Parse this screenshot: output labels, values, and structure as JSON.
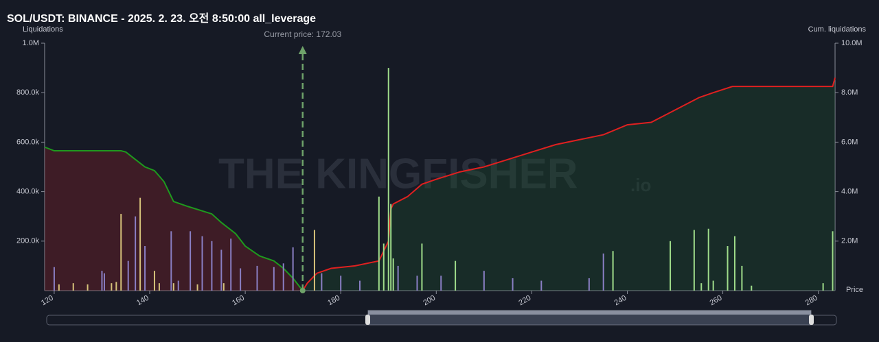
{
  "chart_data": {
    "type": "bar",
    "title": "SOL/USDT: BINANCE - 2025. 2. 23. 오전 8:50:00 all_leverage",
    "y_label": "Liquidations",
    "y2_label": "Cum. liquidations",
    "x_label": "Price",
    "current_price": 172.03,
    "current_price_label": "Current price: 172.03",
    "watermark": "THE KINGFISHER",
    "watermark_suffix": ".io",
    "xlim": [
      118,
      283.5
    ],
    "xticks": [
      120,
      140,
      160,
      180,
      200,
      220,
      240,
      260,
      280
    ],
    "ylim": [
      0,
      1000000
    ],
    "yticks": [
      {
        "value": 200000,
        "label": "200.0k"
      },
      {
        "value": 400000,
        "label": "400.0k"
      },
      {
        "value": 600000,
        "label": "600.0k"
      },
      {
        "value": 800000,
        "label": "800.0k"
      },
      {
        "value": 1000000,
        "label": "1.0M"
      }
    ],
    "y2lim": [
      0,
      10000000
    ],
    "y2ticks": [
      {
        "value": 2000000,
        "label": "2.0M"
      },
      {
        "value": 4000000,
        "label": "4.0M"
      },
      {
        "value": 6000000,
        "label": "6.0M"
      },
      {
        "value": 8000000,
        "label": "8.0M"
      },
      {
        "value": 10000000,
        "label": "10.0M"
      }
    ],
    "series": [
      {
        "type": "bar",
        "color": "#8a7fc4",
        "x": [
          120,
          130,
          130.5,
          135.5,
          137,
          139,
          144.5,
          146,
          148.5,
          151,
          153,
          155,
          157,
          159,
          162.5,
          166,
          168,
          170,
          176,
          180,
          184,
          192,
          196,
          201,
          210,
          216,
          222,
          232,
          235
        ],
        "values": [
          95000,
          80000,
          70000,
          120000,
          300000,
          180000,
          240000,
          40000,
          240000,
          220000,
          200000,
          165000,
          210000,
          90000,
          100000,
          95000,
          110000,
          175000,
          70000,
          60000,
          40000,
          100000,
          60000,
          60000,
          80000,
          50000,
          40000,
          50000,
          150000
        ]
      },
      {
        "type": "bar",
        "color": "#d6c27a",
        "x": [
          121,
          124,
          127,
          132,
          133,
          134,
          138,
          141,
          142,
          145,
          150,
          155.5,
          174.5
        ],
        "values": [
          25000,
          30000,
          25000,
          30000,
          35000,
          310000,
          375000,
          80000,
          30000,
          30000,
          25000,
          30000,
          245000
        ]
      },
      {
        "type": "bar",
        "color": "#9fdc8a",
        "x": [
          188,
          189,
          190,
          190.5,
          191,
          197,
          204,
          237,
          249,
          254,
          255.5,
          257,
          258,
          261,
          262.5,
          264,
          266,
          281,
          283
        ],
        "values": [
          380000,
          190000,
          900000,
          350000,
          130000,
          190000,
          120000,
          160000,
          200000,
          245000,
          30000,
          250000,
          40000,
          180000,
          220000,
          100000,
          20000,
          30000,
          240000
        ]
      },
      {
        "type": "line",
        "axis": "y2",
        "color": "#1e9a1e",
        "fill": "rgba(110,30,40,0.45)",
        "x": [
          118,
          120,
          130,
          134,
          135,
          137,
          139,
          141,
          143,
          145,
          148,
          153,
          155,
          158,
          160,
          163,
          166,
          168,
          170,
          172.03
        ],
        "values": [
          5800000,
          5650000,
          5650000,
          5650000,
          5600000,
          5300000,
          5000000,
          4850000,
          4400000,
          3600000,
          3400000,
          3100000,
          2750000,
          2300000,
          1800000,
          1400000,
          1200000,
          900000,
          500000,
          0
        ]
      },
      {
        "type": "line",
        "axis": "y2",
        "color": "#e02020",
        "fill": "rgba(30,80,45,0.35)",
        "x": [
          172.03,
          173,
          175,
          178,
          183,
          188,
          190,
          190.5,
          191,
          194,
          197,
          200,
          205,
          210,
          215,
          220,
          225,
          230,
          235,
          240,
          245,
          250,
          255,
          258,
          262,
          283,
          283.5
        ],
        "values": [
          0,
          300000,
          700000,
          900000,
          1000000,
          1200000,
          2000000,
          3300000,
          3500000,
          3800000,
          4300000,
          4500000,
          4800000,
          5000000,
          5300000,
          5600000,
          5900000,
          6100000,
          6300000,
          6700000,
          6800000,
          7300000,
          7800000,
          8000000,
          8250000,
          8250000,
          8600000
        ]
      }
    ]
  }
}
